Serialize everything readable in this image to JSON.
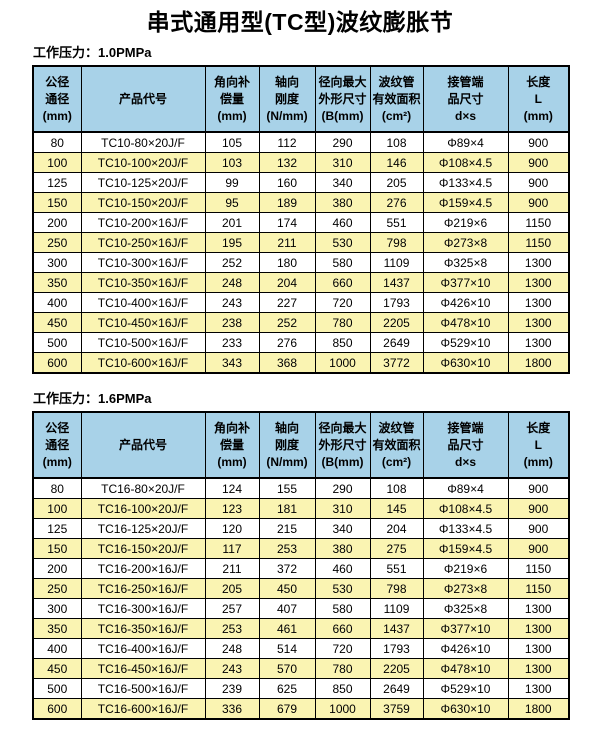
{
  "page": {
    "title": "串式通用型(TC型)波纹膨胀节"
  },
  "columns": [
    {
      "key": "nominal-diameter",
      "lines": [
        "公径",
        "通径",
        "(mm)"
      ]
    },
    {
      "key": "product-code",
      "lines": [
        "产品代号"
      ]
    },
    {
      "key": "angular-compensation",
      "lines": [
        "角向补",
        "偿量",
        "(mm)"
      ]
    },
    {
      "key": "axial-stiffness",
      "lines": [
        "轴向",
        "刚度",
        "(N/mm)"
      ]
    },
    {
      "key": "radial-max-dimension",
      "lines": [
        "径向最大",
        "外形尺寸",
        "(B(mm)"
      ]
    },
    {
      "key": "effective-area",
      "lines": [
        "波纹管",
        "有效面积",
        "(cm²)"
      ]
    },
    {
      "key": "pipe-end-size",
      "lines": [
        "接管端",
        "品尺寸",
        "d×s"
      ]
    },
    {
      "key": "length",
      "lines": [
        "长度",
        "L",
        "(mm)"
      ]
    }
  ],
  "tables": [
    {
      "id": "pn10",
      "pressure_label": "工作压力：1.0PMPa",
      "rows": [
        [
          "80",
          "TC10-80×20J/F",
          "105",
          "112",
          "290",
          "108",
          "Φ89×4",
          "900"
        ],
        [
          "100",
          "TC10-100×20J/F",
          "103",
          "132",
          "310",
          "146",
          "Φ108×4.5",
          "900"
        ],
        [
          "125",
          "TC10-125×20J/F",
          "99",
          "160",
          "340",
          "205",
          "Φ133×4.5",
          "900"
        ],
        [
          "150",
          "TC10-150×20J/F",
          "95",
          "189",
          "380",
          "276",
          "Φ159×4.5",
          "900"
        ],
        [
          "200",
          "TC10-200×16J/F",
          "201",
          "174",
          "460",
          "551",
          "Φ219×6",
          "1150"
        ],
        [
          "250",
          "TC10-250×16J/F",
          "195",
          "211",
          "530",
          "798",
          "Φ273×8",
          "1150"
        ],
        [
          "300",
          "TC10-300×16J/F",
          "252",
          "180",
          "580",
          "1109",
          "Φ325×8",
          "1300"
        ],
        [
          "350",
          "TC10-350×16J/F",
          "248",
          "204",
          "660",
          "1437",
          "Φ377×10",
          "1300"
        ],
        [
          "400",
          "TC10-400×16J/F",
          "243",
          "227",
          "720",
          "1793",
          "Φ426×10",
          "1300"
        ],
        [
          "450",
          "TC10-450×16J/F",
          "238",
          "252",
          "780",
          "2205",
          "Φ478×10",
          "1300"
        ],
        [
          "500",
          "TC10-500×16J/F",
          "233",
          "276",
          "850",
          "2649",
          "Φ529×10",
          "1300"
        ],
        [
          "600",
          "TC10-600×16J/F",
          "343",
          "368",
          "1000",
          "3772",
          "Φ630×10",
          "1800"
        ]
      ]
    },
    {
      "id": "pn16",
      "pressure_label": "工作压力：1.6PMPa",
      "rows": [
        [
          "80",
          "TC16-80×20J/F",
          "124",
          "155",
          "290",
          "108",
          "Φ89×4",
          "900"
        ],
        [
          "100",
          "TC16-100×20J/F",
          "123",
          "181",
          "310",
          "145",
          "Φ108×4.5",
          "900"
        ],
        [
          "125",
          "TC16-125×20J/F",
          "120",
          "215",
          "340",
          "204",
          "Φ133×4.5",
          "900"
        ],
        [
          "150",
          "TC16-150×20J/F",
          "117",
          "253",
          "380",
          "275",
          "Φ159×4.5",
          "900"
        ],
        [
          "200",
          "TC16-200×16J/F",
          "211",
          "372",
          "460",
          "551",
          "Φ219×6",
          "1150"
        ],
        [
          "250",
          "TC16-250×16J/F",
          "205",
          "450",
          "530",
          "798",
          "Φ273×8",
          "1150"
        ],
        [
          "300",
          "TC16-300×16J/F",
          "257",
          "407",
          "580",
          "1109",
          "Φ325×8",
          "1300"
        ],
        [
          "350",
          "TC16-350×16J/F",
          "253",
          "461",
          "660",
          "1437",
          "Φ377×10",
          "1300"
        ],
        [
          "400",
          "TC16-400×16J/F",
          "248",
          "514",
          "720",
          "1793",
          "Φ426×10",
          "1300"
        ],
        [
          "450",
          "TC16-450×16J/F",
          "243",
          "570",
          "780",
          "2205",
          "Φ478×10",
          "1300"
        ],
        [
          "500",
          "TC16-500×16J/F",
          "239",
          "625",
          "850",
          "2649",
          "Φ529×10",
          "1300"
        ],
        [
          "600",
          "TC16-600×16J/F",
          "336",
          "679",
          "1000",
          "3759",
          "Φ630×10",
          "1800"
        ]
      ]
    }
  ],
  "colors": {
    "header_bg": "#a8d2e8",
    "row_bg": "#ffffff",
    "row_alt_bg": "#faf4b2",
    "border": "#000000"
  }
}
